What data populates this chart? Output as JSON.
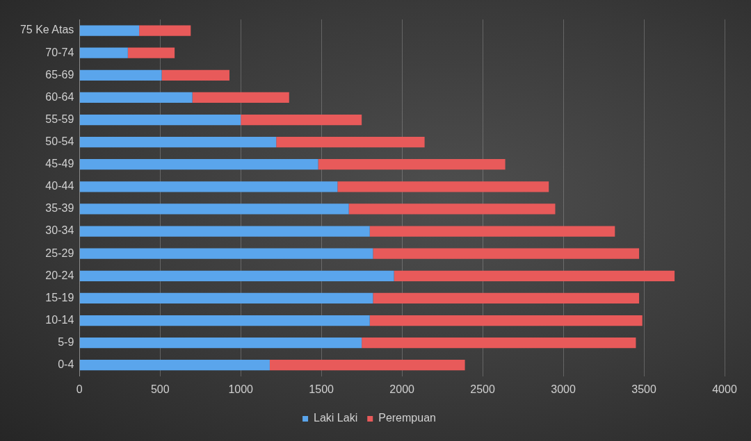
{
  "chart_data": {
    "type": "bar",
    "orientation": "horizontal",
    "stacked": true,
    "categories": [
      "75 Ke Atas",
      "70-74",
      "65-69",
      "60-64",
      "55-59",
      "50-54",
      "45-49",
      "40-44",
      "35-39",
      "30-34",
      "25-29",
      "20-24",
      "15-19",
      "10-14",
      "5-9",
      "0-4"
    ],
    "series": [
      {
        "name": "Laki Laki",
        "color": "#5aa5ec",
        "values": [
          370,
          300,
          510,
          700,
          1000,
          1220,
          1480,
          1600,
          1670,
          1800,
          1820,
          1950,
          1820,
          1800,
          1750,
          1180
        ]
      },
      {
        "name": "Perempuan",
        "color": "#e85a5a",
        "values": [
          320,
          290,
          420,
          600,
          750,
          920,
          1160,
          1310,
          1280,
          1520,
          1650,
          1740,
          1650,
          1690,
          1700,
          1210
        ]
      }
    ],
    "xlim": [
      0,
      4000
    ],
    "xticks": [
      0,
      500,
      1000,
      1500,
      2000,
      2500,
      3000,
      3500,
      4000
    ],
    "grid": "x",
    "legend": "bottom"
  }
}
